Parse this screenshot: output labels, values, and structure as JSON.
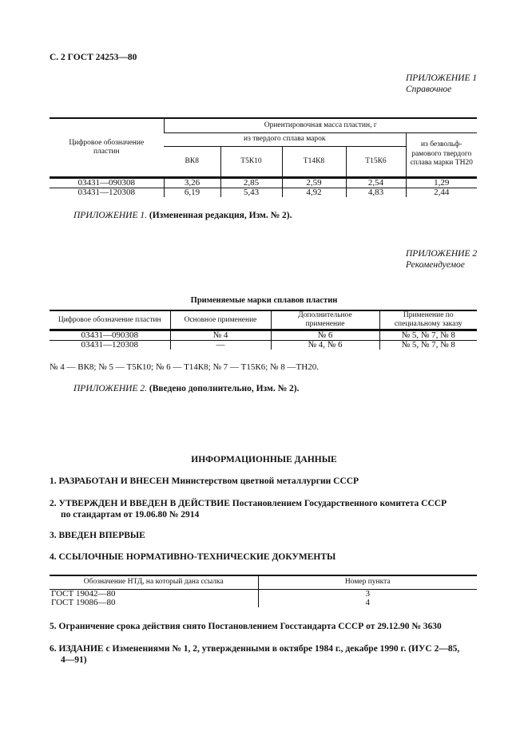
{
  "header": "С. 2 ГОСТ 24253—80",
  "app1": {
    "title": "ПРИЛОЖЕНИЕ 1",
    "subtitle": "Справочное",
    "table": {
      "col0": "Цифровое обозначение пластин",
      "group": "Ориентировочная масса пластин, г",
      "subgroup": "из твердого сплава марок",
      "cols": [
        "ВК8",
        "Т5К10",
        "Т14К8",
        "Т15К6"
      ],
      "last": "из безвольф-рамового твердого сплава марки ТН20",
      "rows": [
        [
          "03431—090308",
          "3,26",
          "2,85",
          "2,59",
          "2,54",
          "1,29"
        ],
        [
          "03431—120308",
          "6,19",
          "5,43",
          "4,92",
          "4,83",
          "2,44"
        ]
      ]
    },
    "note_italic": "ПРИЛОЖЕНИЕ 1.",
    "note_bold": "(Измененная редакция, Изм. № 2)."
  },
  "app2": {
    "title": "ПРИЛОЖЕНИЕ 2",
    "subtitle": "Рекомендуемое",
    "table_title": "Применяемые марки сплавов пластин",
    "table": {
      "headers": [
        "Цифровое обозначение пластин",
        "Основное применение",
        "Дополнительное применение",
        "Применение по специальному заказу"
      ],
      "rows": [
        [
          "03431—090308",
          "№ 4",
          "№ 6",
          "№ 5, № 7, № 8"
        ],
        [
          "03431—120308",
          "—",
          "№ 4, № 6",
          "№ 5, № 7, № 8"
        ]
      ]
    },
    "footnote": "№ 4 — ВК8; № 5 — Т5К10; № 6 — Т14К8; № 7 — Т15К6; № 8 —ТН20.",
    "note_italic": "ПРИЛОЖЕНИЕ 2.",
    "note_bold": "(Введено дополнительно, Изм. № 2)."
  },
  "info": {
    "heading": "ИНФОРМАЦИОННЫЕ ДАННЫЕ",
    "item1": "1. РАЗРАБОТАН И ВНЕСЕН Министерством цветной металлургии СССР",
    "item2a": "2. УТВЕРЖДЕН И ВВЕДЕН В ДЕЙСТВИЕ Постановлением Государственного комитета СССР",
    "item2b": "по стандартам от 19.06.80 № 2914",
    "item3": "3. ВВЕДЕН ВПЕРВЫЕ",
    "item4": "4. ССЫЛОЧНЫЕ НОРМАТИВНО-ТЕХНИЧЕСКИЕ ДОКУМЕНТЫ",
    "table": {
      "headers": [
        "Обозначение НТД, на который дана ссылка",
        "Номер пункта"
      ],
      "rows": [
        [
          "ГОСТ 19042—80",
          "3"
        ],
        [
          "ГОСТ 19086—80",
          "4"
        ]
      ]
    },
    "item5": "5. Ограничение срока действия снято Постановлением Госстандарта СССР от 29.12.90 № 3630",
    "item6a": "6. ИЗДАНИЕ с Изменениями № 1, 2, утвержденными в октябре 1984 г., декабре 1990 г. (ИУС 2—85,",
    "item6b": "4—91)"
  }
}
